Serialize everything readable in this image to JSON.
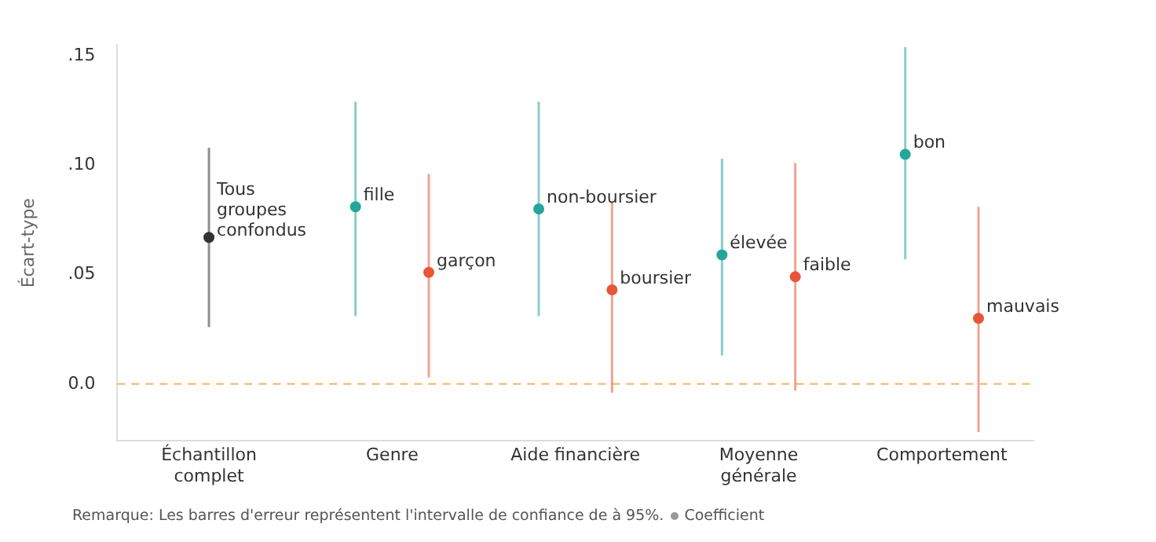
{
  "chart_data": {
    "type": "scatter",
    "ylabel": "Écart-type",
    "categories": [
      "Échantillon complet",
      "Genre",
      "Aide financière",
      "Moyenne générale",
      "Comportement"
    ],
    "series": [
      {
        "name": "Tous groupes confondus",
        "color": "#333333",
        "values": [
          0.067,
          null,
          null,
          null,
          null
        ],
        "errors": [
          [
            0.026,
            0.108
          ],
          null,
          null,
          null,
          null
        ]
      },
      {
        "name": "fille",
        "color": "#26a69a",
        "values": [
          null,
          0.081,
          null,
          null,
          null
        ],
        "errors": [
          null,
          [
            0.031,
            0.129
          ],
          null,
          null,
          null
        ]
      },
      {
        "name": "garçon",
        "color": "#e8553a",
        "values": [
          null,
          0.051,
          null,
          null,
          null
        ],
        "errors": [
          null,
          [
            0.003,
            0.096
          ],
          null,
          null,
          null
        ]
      },
      {
        "name": "non-boursier",
        "color": "#26a69a",
        "values": [
          null,
          null,
          0.08,
          null,
          null
        ],
        "errors": [
          null,
          null,
          [
            0.031,
            0.129
          ],
          null,
          null
        ]
      },
      {
        "name": "boursier",
        "color": "#e8553a",
        "values": [
          null,
          null,
          0.043,
          null,
          null
        ],
        "errors": [
          null,
          null,
          [
            -0.004,
            0.083
          ],
          null,
          null
        ]
      },
      {
        "name": "élevée",
        "color": "#26a69a",
        "values": [
          null,
          null,
          null,
          0.059,
          null
        ],
        "errors": [
          null,
          null,
          null,
          [
            0.013,
            0.103
          ],
          null
        ]
      },
      {
        "name": "faible",
        "color": "#e8553a",
        "values": [
          null,
          null,
          null,
          0.049,
          null
        ],
        "errors": [
          null,
          null,
          null,
          [
            -0.003,
            0.101
          ],
          null
        ]
      },
      {
        "name": "bon",
        "color": "#26a69a",
        "values": [
          null,
          null,
          null,
          null,
          0.105
        ],
        "errors": [
          null,
          null,
          null,
          null,
          [
            0.057,
            0.154
          ]
        ]
      },
      {
        "name": "mauvais",
        "color": "#e8553a",
        "values": [
          null,
          null,
          null,
          null,
          0.03
        ],
        "errors": [
          null,
          null,
          null,
          null,
          [
            -0.022,
            0.081
          ]
        ]
      }
    ],
    "ylim": [
      -0.026,
      0.155
    ],
    "yticks": [
      {
        "value": 0,
        "label": "0.0"
      },
      {
        "value": 0.05,
        "label": ".05"
      },
      {
        "value": 0.1,
        "label": ".10"
      },
      {
        "value": 0.15,
        "label": ".15"
      }
    ],
    "grid": false,
    "marker": "circle",
    "ref_lines": [
      {
        "axis": "y",
        "value": 0,
        "color": "#f0b860",
        "line_style": "dashed"
      }
    ],
    "annotations": [
      "Remarque: Les barres d'erreur représentent l'intervalle de confiance de à 95%.",
      "Coefficient"
    ]
  }
}
